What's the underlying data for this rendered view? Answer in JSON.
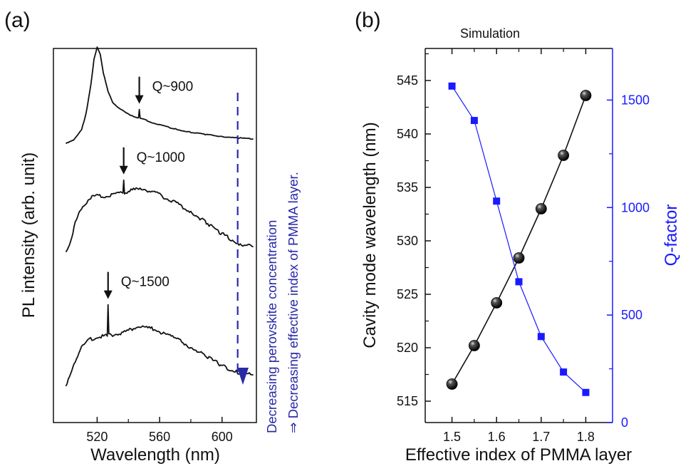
{
  "chart_data": [
    {
      "panel": "(a)",
      "type": "line",
      "xlabel": "Wavelength (nm)",
      "ylabel": "PL intensity (arb. unit)",
      "xlim": [
        492,
        622
      ],
      "xticks": [
        520,
        560,
        600
      ],
      "yticks_shown": false,
      "series": [
        {
          "label": "Q~900",
          "mode_wavelength": 547,
          "x": [
            500,
            505,
            510,
            513,
            516,
            518,
            520,
            522,
            524,
            527,
            530,
            535,
            540,
            545,
            546.5,
            547,
            547.5,
            549,
            555,
            560,
            570,
            580,
            590,
            600,
            610,
            620
          ],
          "y": [
            0.5,
            0.65,
            1.1,
            1.8,
            3.0,
            4.1,
            4.6,
            4.3,
            3.5,
            2.7,
            2.25,
            1.95,
            1.75,
            1.62,
            1.6,
            1.95,
            1.6,
            1.55,
            1.4,
            1.3,
            1.12,
            0.98,
            0.88,
            0.8,
            0.74,
            0.7
          ]
        },
        {
          "label": "Q~1000",
          "mode_wavelength": 537,
          "x": [
            500,
            503,
            506,
            510,
            515,
            520,
            525,
            530,
            535,
            536.5,
            537,
            537.5,
            540,
            545,
            550,
            555,
            560,
            565,
            570,
            580,
            590,
            600,
            610,
            620
          ],
          "y": [
            0.4,
            0.7,
            1.2,
            1.6,
            1.85,
            1.95,
            1.9,
            1.95,
            2.0,
            2.0,
            2.35,
            2.0,
            2.05,
            2.1,
            2.1,
            2.05,
            1.95,
            1.85,
            1.75,
            1.5,
            1.2,
            0.9,
            0.65,
            0.55
          ]
        },
        {
          "label": "Q~1500",
          "mode_wavelength": 527,
          "x": [
            500,
            503,
            506,
            510,
            515,
            520,
            525,
            526.5,
            527,
            527.5,
            530,
            535,
            540,
            545,
            550,
            555,
            560,
            570,
            580,
            590,
            600,
            610,
            620
          ],
          "y": [
            0.3,
            0.55,
            0.95,
            1.3,
            1.5,
            1.58,
            1.6,
            1.6,
            2.45,
            1.62,
            1.63,
            1.68,
            1.75,
            1.85,
            1.85,
            1.8,
            1.72,
            1.55,
            1.3,
            1.05,
            0.8,
            0.62,
            0.55
          ]
        }
      ],
      "annotation": {
        "line1": "Decreasing perovskite concentration",
        "line2": "⇒ Decreasing effective index of PMMA layer.",
        "arrow_color": "#2a2aa8",
        "arrow_x": 610
      }
    },
    {
      "panel": "(b)",
      "type": "line",
      "title": "Simulation",
      "xlabel": "Effective index of PMMA layer",
      "ylabel": "Cavity mode wavelength (nm)",
      "y2label": "Q-factor",
      "xlim": [
        1.44,
        1.86
      ],
      "ylim": [
        513,
        548
      ],
      "y2lim": [
        0,
        1740
      ],
      "xticks": [
        1.5,
        1.6,
        1.7,
        1.8
      ],
      "xtick_labels": [
        "1.5",
        "1.6",
        "1.7",
        "1.8"
      ],
      "minor_xticks": [
        1.55,
        1.65,
        1.75
      ],
      "yticks": [
        515,
        520,
        525,
        530,
        535,
        540,
        545
      ],
      "y2ticks": [
        0,
        500,
        1000,
        1500
      ],
      "x": [
        1.5,
        1.55,
        1.6,
        1.65,
        1.7,
        1.75,
        1.8
      ],
      "series": [
        {
          "axis": "left",
          "color": "#111111",
          "marker": "sphere",
          "values": [
            516.6,
            520.2,
            524.2,
            528.4,
            533.0,
            538.0,
            543.6
          ]
        },
        {
          "axis": "right",
          "color": "#1a1aff",
          "marker": "square",
          "values": [
            1565,
            1405,
            1030,
            655,
            400,
            235,
            140
          ]
        }
      ]
    }
  ]
}
